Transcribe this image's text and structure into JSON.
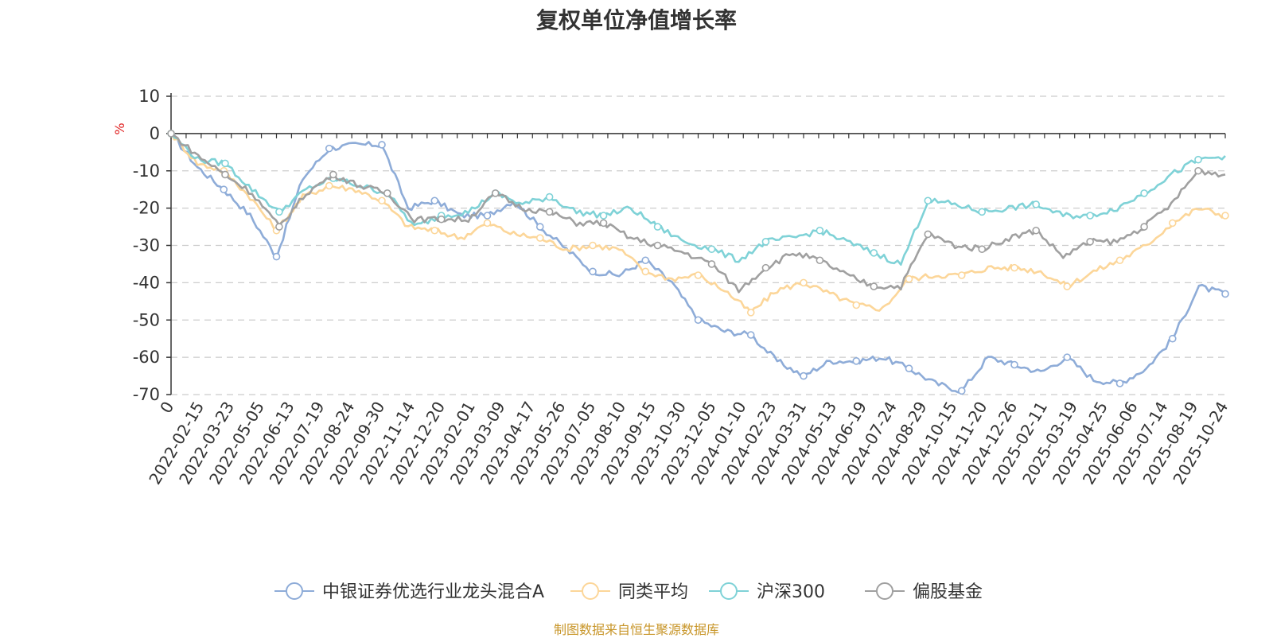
{
  "chart_data": {
    "type": "line",
    "title": "复权单位净值增长率",
    "ylabel": "%",
    "xlabel": "",
    "ylim": [
      -70,
      10
    ],
    "yticks": [
      10,
      0,
      -10,
      -20,
      -30,
      -40,
      -50,
      -60,
      -70
    ],
    "x_tick_labels": [
      "0",
      "2022-02-15",
      "2022-03-23",
      "2022-05-05",
      "2022-06-13",
      "2022-07-19",
      "2022-08-24",
      "2022-09-30",
      "2022-11-14",
      "2022-12-20",
      "2023-02-01",
      "2023-03-09",
      "2023-04-17",
      "2023-05-26",
      "2023-07-05",
      "2023-08-10",
      "2023-09-15",
      "2023-10-30",
      "2023-12-05",
      "2024-01-10",
      "2024-02-23",
      "2024-03-31",
      "2024-05-13",
      "2024-06-19",
      "2024-07-24",
      "2024-08-29",
      "2024-10-15",
      "2024-11-20",
      "2024-12-26",
      "2025-02-11",
      "2025-03-19",
      "2025-04-25",
      "2025-06-06",
      "2025-07-14",
      "2025-08-19",
      "2025-10-24"
    ],
    "legend_position": "bottom",
    "grid": true,
    "series": [
      {
        "name": "中银证券优选行业龙头混合A",
        "color": "#8eacd8",
        "values": [
          0,
          -9,
          -15,
          -22,
          -33,
          -12,
          -4,
          -3,
          -3,
          -20,
          -18,
          -22,
          -22,
          -18,
          -25,
          -31,
          -37,
          -38,
          -34,
          -40,
          -50,
          -53,
          -54,
          -61,
          -65,
          -61,
          -61,
          -60,
          -63,
          -67,
          -69,
          -60,
          -62,
          -64,
          -60,
          -66,
          -67,
          -63,
          -55,
          -41,
          -43
        ]
      },
      {
        "name": "同类平均",
        "color": "#fcd699",
        "values": [
          0,
          -8,
          -10,
          -17,
          -26,
          -17,
          -14,
          -15,
          -18,
          -25,
          -26,
          -28,
          -24,
          -27,
          -28,
          -31,
          -30,
          -31,
          -37,
          -39,
          -38,
          -42,
          -48,
          -42,
          -40,
          -43,
          -46,
          -47,
          -39,
          -38,
          -38,
          -36,
          -36,
          -37,
          -41,
          -37,
          -34,
          -30,
          -24,
          -20,
          -22
        ]
      },
      {
        "name": "沪深300",
        "color": "#7fd2d7",
        "values": [
          0,
          -7,
          -8,
          -15,
          -21,
          -15,
          -12,
          -14,
          -16,
          -25,
          -22,
          -21,
          -16,
          -19,
          -17,
          -21,
          -22,
          -20,
          -25,
          -29,
          -31,
          -34,
          -29,
          -28,
          -26,
          -29,
          -32,
          -35,
          -18,
          -19,
          -21,
          -20,
          -19,
          -22,
          -22,
          -20,
          -16,
          -11,
          -7,
          -6
        ]
      },
      {
        "name": "偏股基金",
        "color": "#a0a0a0",
        "values": [
          0,
          -6,
          -11,
          -16,
          -25,
          -16,
          -11,
          -14,
          -16,
          -23,
          -23,
          -23,
          -16,
          -20,
          -21,
          -24,
          -24,
          -28,
          -30,
          -32,
          -35,
          -42,
          -36,
          -32,
          -34,
          -38,
          -41,
          -41,
          -27,
          -30,
          -31,
          -28,
          -26,
          -33,
          -29,
          -29,
          -25,
          -19,
          -10,
          -11
        ]
      }
    ]
  },
  "source_note": "制图数据来自恒生聚源数据库"
}
